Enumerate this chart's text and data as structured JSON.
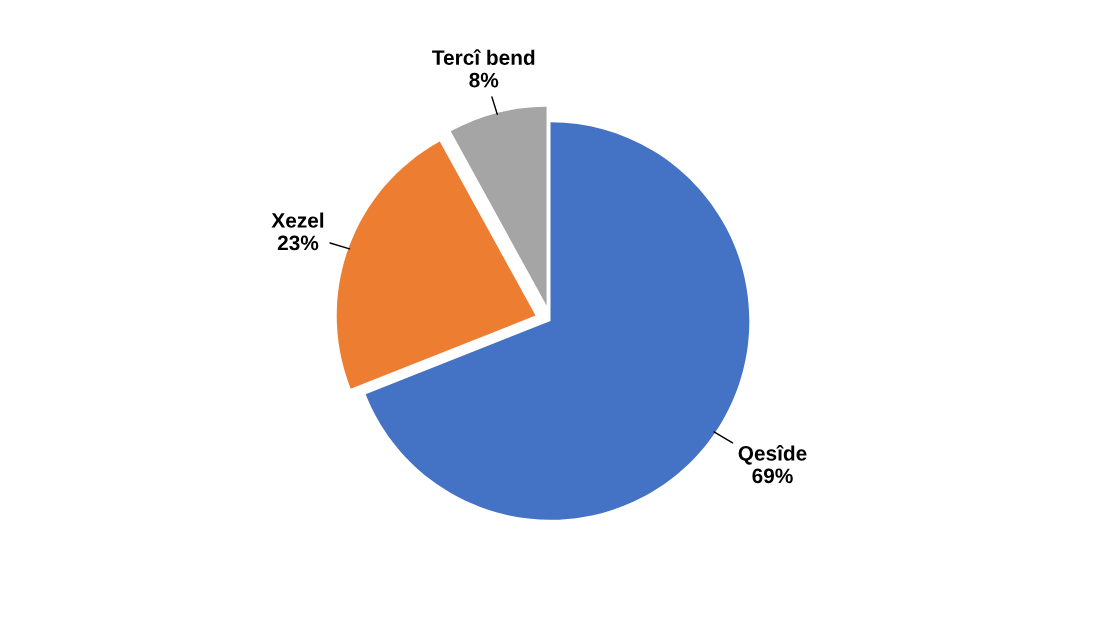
{
  "chart_data": {
    "type": "pie",
    "categories": [
      "Qesîde",
      "Xezel",
      "Tercî bend"
    ],
    "values": [
      69,
      23,
      8
    ],
    "value_labels": [
      "69%",
      "23%",
      "8%"
    ],
    "colors": [
      "#4472c4",
      "#ed7d31",
      "#a5a5a5"
    ],
    "legend": false
  }
}
